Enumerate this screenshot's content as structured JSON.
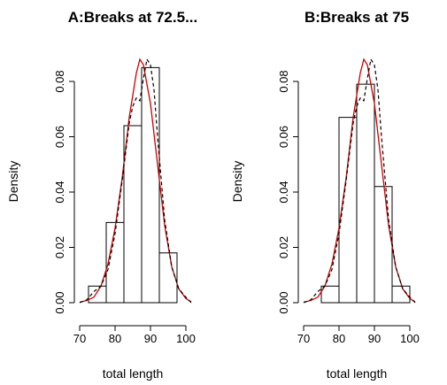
{
  "chart_data": [
    {
      "type": "bar",
      "title": "A:Breaks at 72.5...",
      "xlabel": "total length",
      "ylabel": "Density",
      "xlim": [
        70,
        100
      ],
      "ylim": [
        0,
        0.08
      ],
      "x_ticks": [
        70,
        80,
        90,
        100
      ],
      "y_ticks": [
        0.0,
        0.02,
        0.04,
        0.06,
        0.08
      ],
      "x_tick_labels": [
        "70",
        "80",
        "90",
        "100"
      ],
      "y_tick_labels": [
        "0.00",
        "0.02",
        "0.04",
        "0.06",
        "0.08"
      ],
      "histogram": {
        "breaks": [
          72.5,
          77.5,
          82.5,
          87.5,
          92.5,
          97.5
        ],
        "density": [
          0.006,
          0.029,
          0.064,
          0.085,
          0.018
        ]
      },
      "series": [
        {
          "kind": "normal-curve",
          "color": "#cc0000",
          "style": "solid",
          "x": [
            70,
            72,
            74,
            76,
            78,
            80,
            82,
            84,
            86,
            87,
            88,
            90,
            92,
            94,
            96,
            98,
            100,
            102
          ],
          "y": [
            0.0002,
            0.0008,
            0.002,
            0.006,
            0.014,
            0.027,
            0.045,
            0.067,
            0.083,
            0.088,
            0.086,
            0.072,
            0.05,
            0.028,
            0.013,
            0.005,
            0.0015,
            0.0003
          ]
        },
        {
          "kind": "density-estimate",
          "color": "#000000",
          "style": "dashed",
          "x": [
            70,
            72,
            74,
            76,
            78,
            80,
            82,
            84,
            85,
            86,
            87,
            88,
            89,
            90,
            91,
            92,
            94,
            96,
            98,
            100,
            102
          ],
          "y": [
            0.0,
            0.001,
            0.004,
            0.006,
            0.012,
            0.025,
            0.044,
            0.065,
            0.071,
            0.074,
            0.073,
            0.081,
            0.088,
            0.086,
            0.077,
            0.06,
            0.03,
            0.013,
            0.005,
            0.002,
            0.0
          ]
        }
      ]
    },
    {
      "type": "bar",
      "title": "B:Breaks at 75",
      "xlabel": "total length",
      "ylabel": "Density",
      "xlim": [
        70,
        100
      ],
      "ylim": [
        0,
        0.08
      ],
      "x_ticks": [
        70,
        80,
        90,
        100
      ],
      "y_ticks": [
        0.0,
        0.02,
        0.04,
        0.06,
        0.08
      ],
      "x_tick_labels": [
        "70",
        "80",
        "90",
        "100"
      ],
      "y_tick_labels": [
        "0.00",
        "0.02",
        "0.04",
        "0.06",
        "0.08"
      ],
      "histogram": {
        "breaks": [
          75,
          80,
          85,
          90,
          95,
          100
        ],
        "density": [
          0.006,
          0.067,
          0.079,
          0.042,
          0.006
        ]
      },
      "series": [
        {
          "kind": "normal-curve",
          "color": "#cc0000",
          "style": "solid",
          "x": [
            70,
            72,
            74,
            76,
            78,
            80,
            82,
            84,
            86,
            87,
            88,
            90,
            92,
            94,
            96,
            98,
            100,
            102
          ],
          "y": [
            0.0002,
            0.0008,
            0.002,
            0.006,
            0.014,
            0.027,
            0.045,
            0.067,
            0.083,
            0.088,
            0.086,
            0.072,
            0.05,
            0.028,
            0.013,
            0.005,
            0.0015,
            0.0003
          ]
        },
        {
          "kind": "density-estimate",
          "color": "#000000",
          "style": "dashed",
          "x": [
            70,
            72,
            74,
            76,
            78,
            80,
            82,
            84,
            85,
            86,
            87,
            88,
            89,
            90,
            91,
            92,
            94,
            96,
            98,
            100,
            102
          ],
          "y": [
            0.0,
            0.001,
            0.004,
            0.006,
            0.012,
            0.025,
            0.044,
            0.065,
            0.071,
            0.074,
            0.073,
            0.081,
            0.088,
            0.086,
            0.077,
            0.06,
            0.03,
            0.013,
            0.005,
            0.002,
            0.0
          ]
        }
      ]
    }
  ]
}
